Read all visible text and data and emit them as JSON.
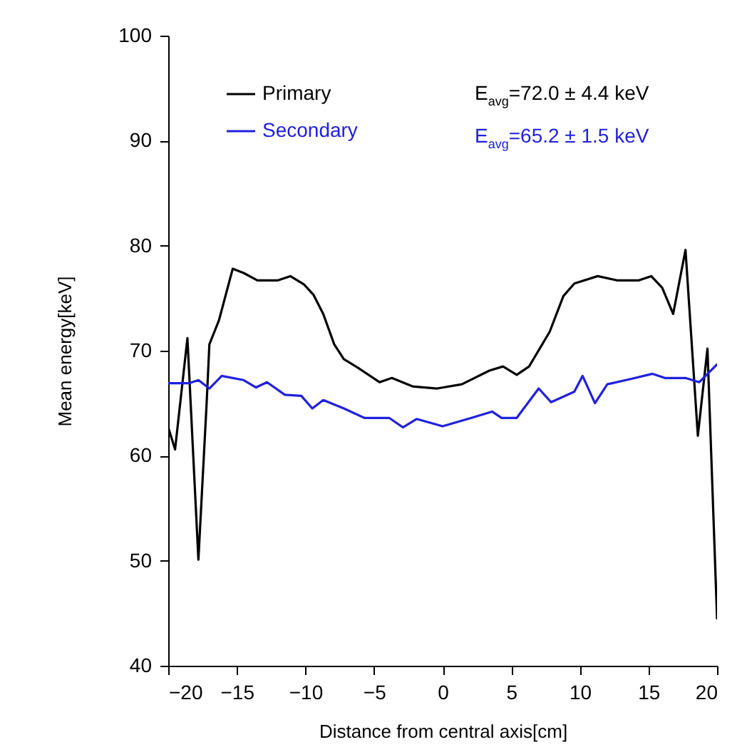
{
  "chart_data": {
    "type": "line",
    "xlabel": "Distance from central axis[cm]",
    "ylabel": "Mean energy[keV]",
    "xlim": [
      -20,
      20
    ],
    "xticks": [
      -20,
      -15,
      -10,
      -5,
      0,
      5,
      10,
      15,
      20
    ],
    "ylim": [
      40,
      100
    ],
    "yticks": [
      40,
      50,
      60,
      70,
      80,
      90,
      100
    ],
    "legend": "top",
    "grid": false,
    "marker": "none",
    "line_style": "solid",
    "annotations": [
      "E$_{avg}$=72.0 ± 4.4 keV",
      "E$_{avg}$=65.2 ± 1.5 keV"
    ],
    "series": [
      {
        "name": "Primary",
        "color": "#000000",
        "x": [
          -20,
          -19.5,
          -18.6,
          -17.8,
          -17.2,
          -17.0,
          -16.3,
          -15.3,
          -14.5,
          -13.5,
          -12.0,
          -11.1,
          -10.1,
          -9.4,
          -8.7,
          -7.9,
          -7.2,
          -6.2,
          -4.6,
          -3.7,
          -2.2,
          -0.4,
          1.4,
          3.4,
          4.4,
          5.4,
          6.3,
          7.8,
          8.8,
          9.6,
          11.3,
          12.7,
          14.3,
          15.2,
          16.0,
          16.8,
          17.7,
          18.6,
          19.3,
          20
        ],
        "values": [
          62.7,
          60.6,
          71.2,
          50.1,
          65.0,
          70.6,
          72.9,
          77.8,
          77.4,
          76.7,
          76.7,
          77.1,
          76.3,
          75.3,
          73.5,
          70.6,
          69.2,
          68.4,
          67.0,
          67.4,
          66.6,
          66.4,
          66.8,
          68.1,
          68.5,
          67.7,
          68.5,
          71.8,
          75.2,
          76.4,
          77.1,
          76.7,
          76.7,
          77.1,
          76.0,
          73.5,
          79.6,
          61.9,
          70.2,
          44.5
        ]
      },
      {
        "name": "Secondary",
        "color": "#2020e0",
        "x": [
          -20,
          -18.5,
          -17.8,
          -17.0,
          -16.1,
          -14.5,
          -13.6,
          -12.8,
          -11.5,
          -10.3,
          -9.5,
          -8.7,
          -7.2,
          -5.7,
          -3.9,
          -2.9,
          -1.9,
          0,
          2.1,
          3.6,
          4.3,
          5.4,
          7.0,
          7.9,
          9.6,
          10.2,
          11.1,
          12.0,
          13.7,
          15.3,
          16.2,
          17.7,
          18.7,
          20
        ],
        "values": [
          66.9,
          66.9,
          67.2,
          66.4,
          67.6,
          67.2,
          66.5,
          67.0,
          65.8,
          65.7,
          64.5,
          65.3,
          64.5,
          63.6,
          63.6,
          62.7,
          63.5,
          62.8,
          63.6,
          64.2,
          63.6,
          63.6,
          66.4,
          65.1,
          66.1,
          67.6,
          65.0,
          66.8,
          67.3,
          67.8,
          67.4,
          67.4,
          67.0,
          68.7
        ]
      }
    ]
  }
}
